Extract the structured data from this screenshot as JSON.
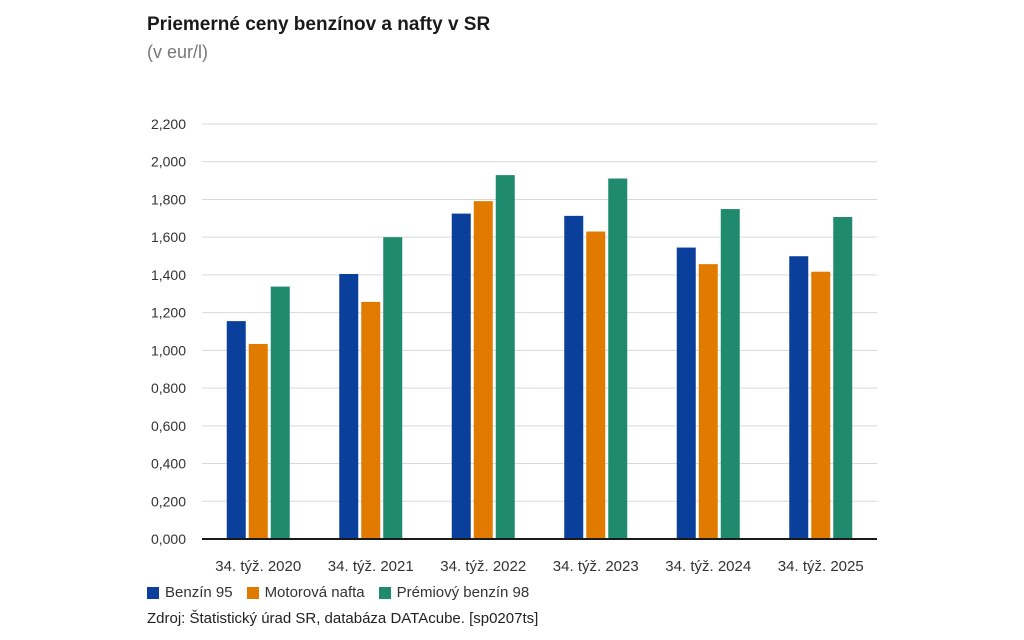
{
  "title": "Priemerné ceny benzínov a nafty v SR",
  "subtitle": "(v eur/l)",
  "source": "Zdroj: Štatistický úrad SR, databáza DATAcube. [sp0207ts]",
  "chart_data": {
    "type": "bar",
    "title": "Priemerné ceny benzínov a nafty v SR",
    "subtitle": "(v eur/l)",
    "categories": [
      "34. týž. 2020",
      "34. týž. 2021",
      "34. týž. 2022",
      "34. týž. 2023",
      "34. týž. 2024",
      "34. týž. 2025"
    ],
    "series": [
      {
        "name": "Benzín 95",
        "color": "#0b3f9c",
        "values": [
          1.155,
          1.405,
          1.725,
          1.713,
          1.545,
          1.499
        ]
      },
      {
        "name": "Motorová nafta",
        "color": "#e07b00",
        "values": [
          1.034,
          1.257,
          1.791,
          1.63,
          1.457,
          1.417
        ]
      },
      {
        "name": "Prémiový benzín 98",
        "color": "#1f8a6e",
        "values": [
          1.338,
          1.6,
          1.929,
          1.911,
          1.749,
          1.707
        ]
      }
    ],
    "ylim": [
      0,
      2.2
    ],
    "yticks": [
      "0,000",
      "0,200",
      "0,400",
      "0,600",
      "0,800",
      "1,000",
      "1,200",
      "1,400",
      "1,600",
      "1,800",
      "2,000",
      "2,200"
    ],
    "grid": true,
    "legend_position": "bottom-left"
  }
}
